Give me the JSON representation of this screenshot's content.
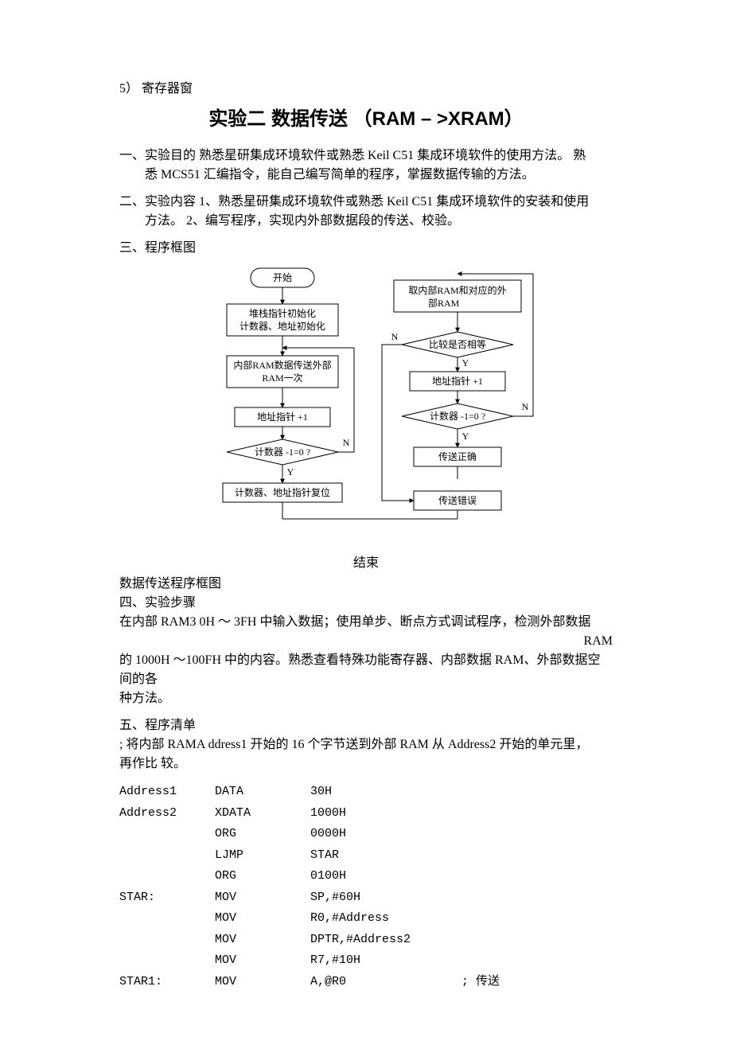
{
  "preHeader": "5） 寄存器窗",
  "title": "实验二  数据传送 （RAM –  >XRAM）",
  "s1": {
    "head": "一、实验目的 熟悉星研集成环境软件或熟悉 Keil C51 集成环境软件的使用方法。  熟",
    "line2": "悉 MCS51 汇编指令，能自己编写简单的程序，掌握数据传输的方法。"
  },
  "s2": {
    "head": "二、实验内容 1、熟悉星研集成环境软件或熟悉 Keil C51 集成环境软件的安装和使用",
    "line2": "方法。  2、编写程序，实现内外部数据段的传送、校验。"
  },
  "s3": {
    "head": "三、程序框图"
  },
  "flow": {
    "start": "开始",
    "init1": "堆栈指针初始化",
    "init2": "计数器、地址初始化",
    "xfer1": "内部RAM数据传送外部",
    "xfer2": "RAM一次",
    "addr1": "地址指针 +1",
    "cnt1": "计数器 -1=0 ?",
    "reset": "计数器、地址指针复位",
    "fetch1": "取内部RAM和对应的外",
    "fetch2": "部RAM",
    "cmp": "比较是否相等",
    "addr2": "地址指针 +1",
    "cnt2": "计数器 -1=0 ?",
    "ok": "传送正确",
    "err": "传送错误",
    "end": "结束",
    "yes": "Y",
    "no": "N"
  },
  "s3cap": "数据传送程序框图",
  "s4": {
    "head": "四、实验步骤",
    "l1": "    在内部 RAM3 0H ～ 3FH 中输入数据；使用单步、断点方式调试程序，检测外部数据",
    "ram": "RAM",
    "l2": "的 1000H ～100FH 中的内容。熟悉查看特殊功能寄存器、内部数据 RAM、外部数据空间的各",
    "l3": "种方法。"
  },
  "s5": {
    "head": "五、程序清单",
    "c1": " ; 将内部 RAMA ddress1 开始的 16 个字节送到外部 RAM 从 Address2 开始的单元里，",
    "c2": " 再作比 较。"
  },
  "code": [
    {
      "label": "Address1",
      "op": "DATA",
      "arg": "30H",
      "cmt": ""
    },
    {
      "label": "Address2",
      "op": "XDATA",
      "arg": "1000H",
      "cmt": ""
    },
    {
      "label": "",
      "op": "ORG",
      "arg": "0000H",
      "cmt": ""
    },
    {
      "label": "",
      "op": "LJMP",
      "arg": "STAR",
      "cmt": ""
    },
    {
      "label": "",
      "op": "ORG",
      "arg": "0100H",
      "cmt": ""
    },
    {
      "label": "STAR:",
      "op": "MOV",
      "arg": "SP,#60H",
      "cmt": ""
    },
    {
      "label": "",
      "op": "MOV",
      "arg": "R0,#Address",
      "cmt": ""
    },
    {
      "label": "",
      "op": "MOV",
      "arg": "DPTR,#Address2",
      "cmt": ""
    },
    {
      "label": "",
      "op": "MOV",
      "arg": "R7,#10H",
      "cmt": ""
    },
    {
      "label": "STAR1:",
      "op": "MOV",
      "arg": "A,@R0",
      "cmt": "; 传送"
    }
  ],
  "colors": {
    "stroke": "#000000",
    "bg": "#ffffff"
  }
}
